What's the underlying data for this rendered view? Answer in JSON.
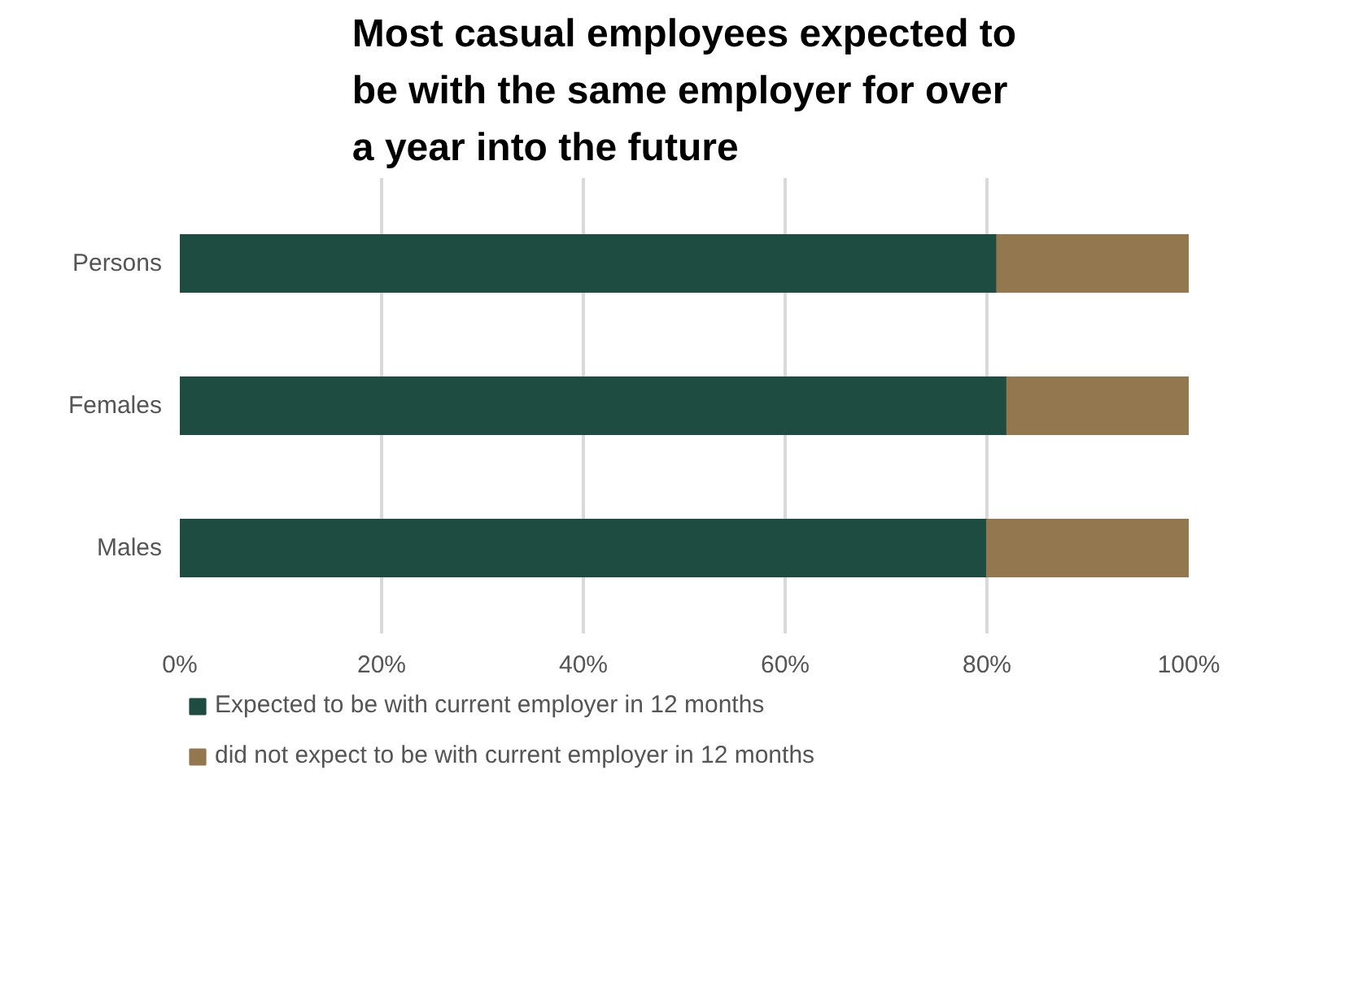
{
  "chart_data": {
    "type": "bar",
    "orientation": "horizontal",
    "stacked": true,
    "title": "Most casual employees expected to be with the same employer for over a year into the future",
    "categories": [
      "Persons",
      "Females",
      "Males"
    ],
    "series": [
      {
        "name": "Expected to be with current employer in 12 months",
        "color": "#1f4c40",
        "values": [
          81,
          82,
          80
        ]
      },
      {
        "name": "did not expect to be with current employer in 12 months",
        "color": "#93774e",
        "values": [
          19,
          18,
          20
        ]
      }
    ],
    "xlim": [
      0,
      100
    ],
    "xticks": [
      {
        "value": 0,
        "label": "0%"
      },
      {
        "value": 20,
        "label": "20%"
      },
      {
        "value": 40,
        "label": "40%"
      },
      {
        "value": 60,
        "label": "60%"
      },
      {
        "value": 80,
        "label": "80%"
      },
      {
        "value": 100,
        "label": "100%"
      }
    ],
    "grid": "x",
    "legend": "bottom"
  }
}
